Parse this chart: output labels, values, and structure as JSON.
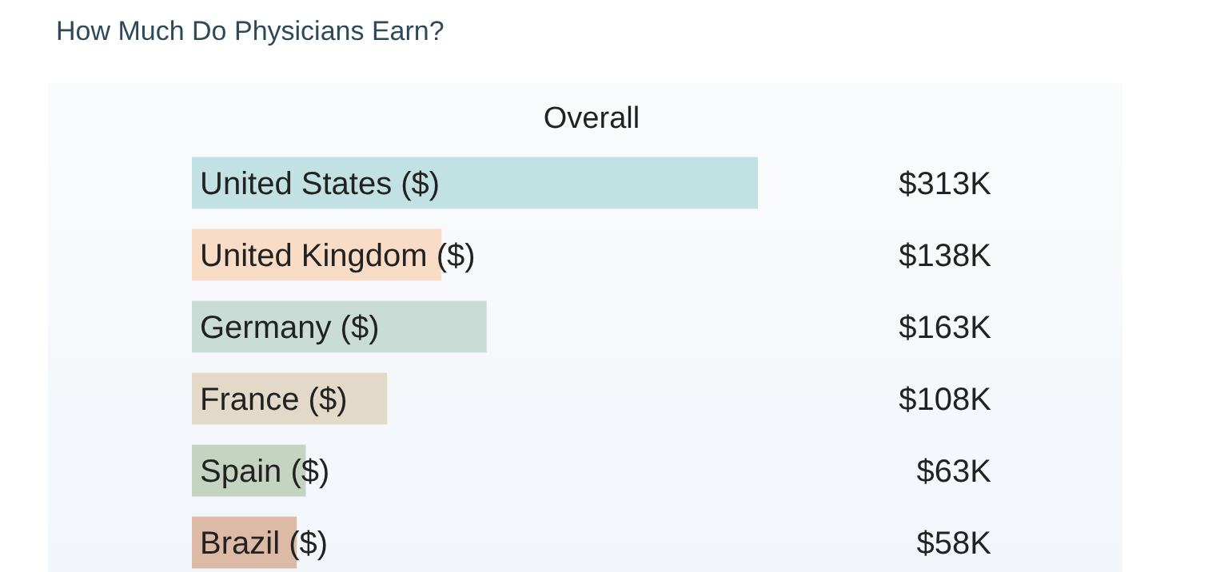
{
  "chart_data": {
    "type": "bar",
    "orientation": "horizontal",
    "title": "How Much Do Physicians Earn?",
    "subtitle": "Overall",
    "categories": [
      "United States ($)",
      "United Kingdom ($)",
      "Germany ($)",
      "France ($)",
      "Spain ($)",
      "Brazil ($)"
    ],
    "values": [
      313,
      138,
      163,
      108,
      63,
      58
    ],
    "value_labels": [
      "$313K",
      "$138K",
      "$163K",
      "$108K",
      "$63K",
      "$58K"
    ],
    "colors": [
      "#c2e1e3",
      "#f9dcc5",
      "#c9ddd6",
      "#e3d9c9",
      "#c4d4c0",
      "#dcbaa6"
    ]
  }
}
